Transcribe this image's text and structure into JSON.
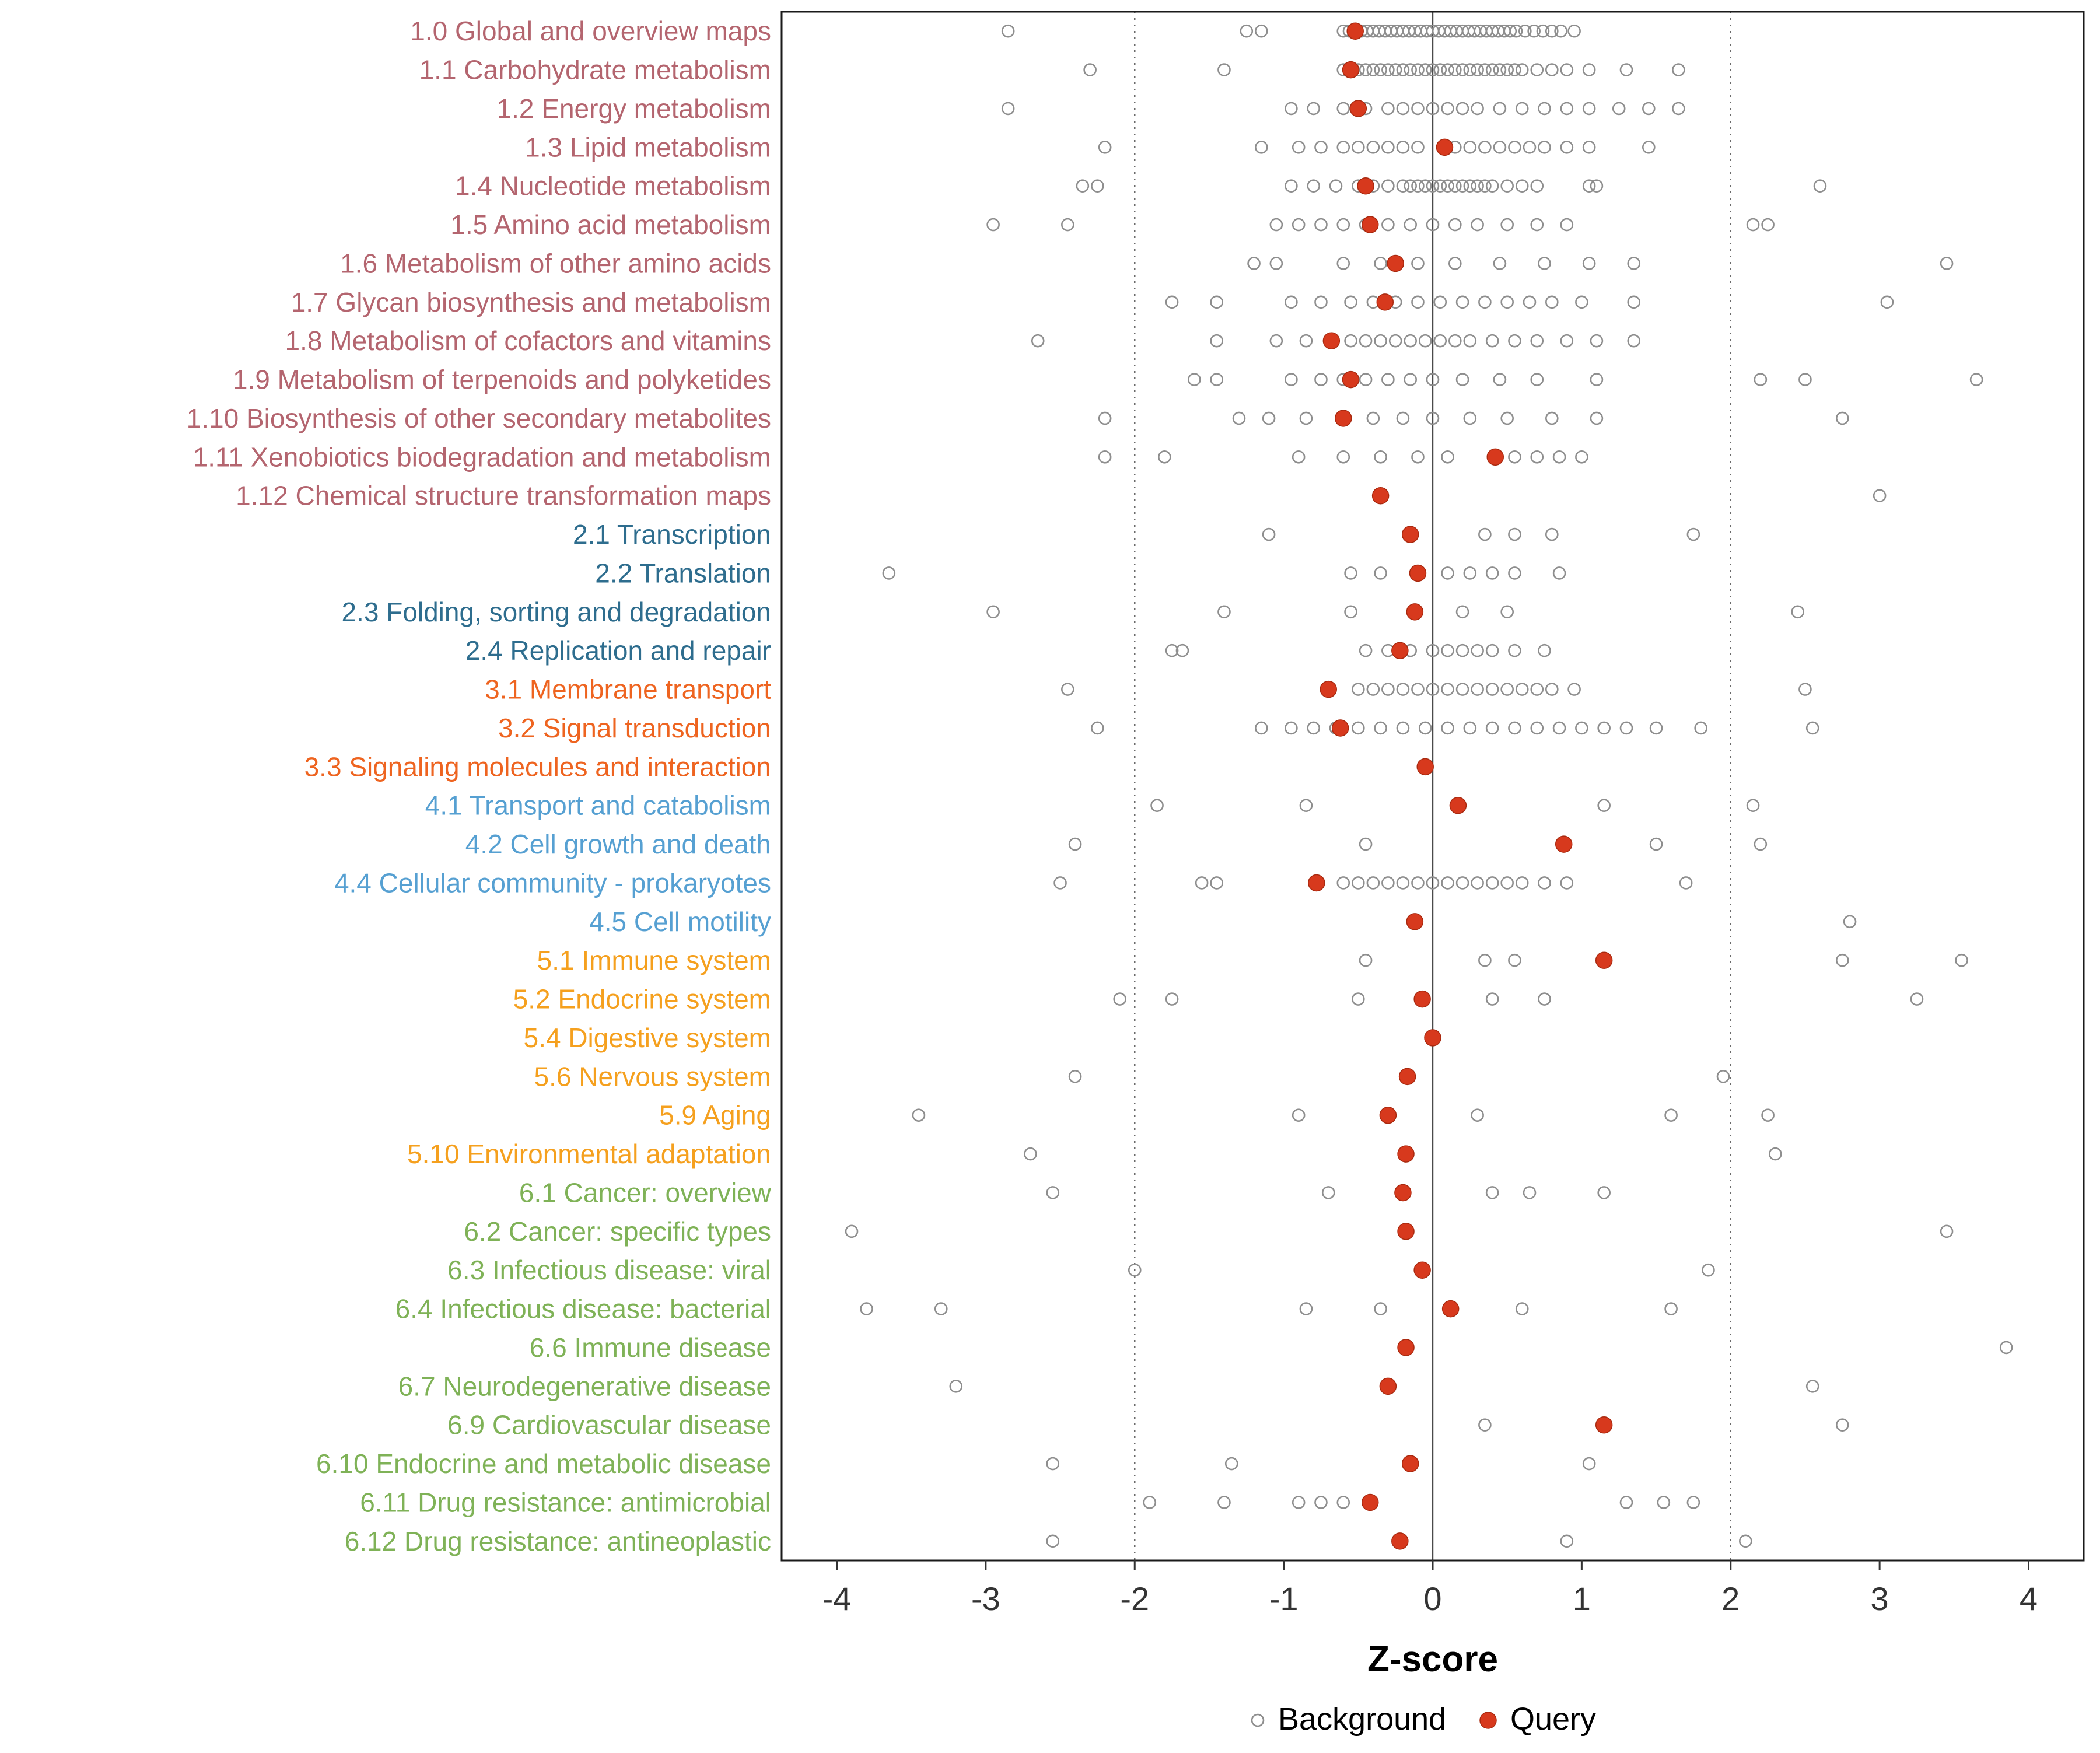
{
  "chart_data": {
    "type": "scatter",
    "title": "",
    "xlabel": "Z-score",
    "ylabel": "",
    "x_ticks": [
      -4,
      -3,
      -2,
      -1,
      0,
      1,
      2,
      3,
      4
    ],
    "xlim": [
      -4.37,
      4.37
    ],
    "grid": false,
    "reference_lines": {
      "solid": [
        0
      ],
      "dotted": [
        -2,
        2
      ]
    },
    "legend": {
      "position": "bottom",
      "items": [
        {
          "label": "Background",
          "marker": "open-circle"
        },
        {
          "label": "Query",
          "marker": "filled-circle"
        }
      ]
    },
    "colors": {
      "query": "#d7391d",
      "query_stroke": "#a8290f",
      "background_stroke": "#8e8e8e",
      "panel_border": "#1a1a1a",
      "zero_line": "#4a4a4a",
      "dotted_line": "#6a6a6a",
      "tick_text": "#333333",
      "axis_label": "#000000",
      "groups": {
        "1": "#b4656f",
        "2": "#2e6d8e",
        "3": "#ee6420",
        "4": "#56a0d2",
        "5": "#f5a01e",
        "6": "#7fb257"
      }
    },
    "rows": [
      {
        "label": "1.0 Global and overview maps",
        "group": "1",
        "query": -0.52,
        "background": [
          -2.85,
          -1.25,
          -1.15,
          -0.6,
          -0.56,
          -0.52,
          -0.48,
          -0.44,
          -0.4,
          -0.36,
          -0.32,
          -0.28,
          -0.24,
          -0.2,
          -0.16,
          -0.12,
          -0.08,
          -0.04,
          0,
          0.04,
          0.08,
          0.12,
          0.16,
          0.2,
          0.24,
          0.28,
          0.32,
          0.36,
          0.4,
          0.44,
          0.48,
          0.52,
          0.56,
          0.62,
          0.68,
          0.74,
          0.8,
          0.86,
          0.95
        ]
      },
      {
        "label": "1.1 Carbohydrate metabolism",
        "group": "1",
        "query": -0.55,
        "background": [
          -2.3,
          -1.4,
          -0.6,
          -0.55,
          -0.5,
          -0.45,
          -0.4,
          -0.35,
          -0.3,
          -0.25,
          -0.2,
          -0.15,
          -0.1,
          -0.05,
          0,
          0.05,
          0.1,
          0.15,
          0.2,
          0.25,
          0.3,
          0.35,
          0.4,
          0.45,
          0.5,
          0.55,
          0.6,
          0.7,
          0.8,
          0.9,
          1.05,
          1.3,
          1.65
        ]
      },
      {
        "label": "1.2 Energy metabolism",
        "group": "1",
        "query": -0.5,
        "background": [
          -2.85,
          -0.95,
          -0.8,
          -0.6,
          -0.45,
          -0.3,
          -0.2,
          -0.1,
          0,
          0.1,
          0.2,
          0.3,
          0.45,
          0.6,
          0.75,
          0.9,
          1.05,
          1.25,
          1.45,
          1.65
        ]
      },
      {
        "label": "1.3 Lipid metabolism",
        "group": "1",
        "query": 0.08,
        "background": [
          -2.2,
          -1.15,
          -0.9,
          -0.75,
          -0.6,
          -0.5,
          -0.4,
          -0.3,
          -0.2,
          -0.1,
          0.15,
          0.25,
          0.35,
          0.45,
          0.55,
          0.65,
          0.75,
          0.9,
          1.05,
          1.45
        ]
      },
      {
        "label": "1.4 Nucleotide metabolism",
        "group": "1",
        "query": -0.45,
        "background": [
          -2.35,
          -2.25,
          -0.95,
          -0.8,
          -0.65,
          -0.5,
          -0.4,
          -0.3,
          -0.2,
          -0.15,
          -0.1,
          -0.05,
          0,
          0.05,
          0.1,
          0.15,
          0.2,
          0.25,
          0.3,
          0.35,
          0.4,
          0.5,
          0.6,
          0.7,
          1.05,
          1.1,
          2.6
        ]
      },
      {
        "label": "1.5 Amino acid metabolism",
        "group": "1",
        "query": -0.42,
        "background": [
          -2.95,
          -2.45,
          -1.05,
          -0.9,
          -0.75,
          -0.6,
          -0.45,
          -0.3,
          -0.15,
          0,
          0.15,
          0.3,
          0.5,
          0.7,
          0.9,
          2.15,
          2.25
        ]
      },
      {
        "label": "1.6 Metabolism of other amino acids",
        "group": "1",
        "query": -0.25,
        "background": [
          -1.2,
          -1.05,
          -0.6,
          -0.35,
          -0.1,
          0.15,
          0.45,
          0.75,
          1.05,
          1.35,
          3.45
        ]
      },
      {
        "label": "1.7 Glycan biosynthesis and metabolism",
        "group": "1",
        "query": -0.32,
        "background": [
          -1.75,
          -1.45,
          -0.95,
          -0.75,
          -0.55,
          -0.4,
          -0.25,
          -0.1,
          0.05,
          0.2,
          0.35,
          0.5,
          0.65,
          0.8,
          1.0,
          1.35,
          3.05
        ]
      },
      {
        "label": "1.8 Metabolism of cofactors and vitamins",
        "group": "1",
        "query": -0.68,
        "background": [
          -2.65,
          -1.45,
          -1.05,
          -0.85,
          -0.55,
          -0.45,
          -0.35,
          -0.25,
          -0.15,
          -0.05,
          0.05,
          0.15,
          0.25,
          0.4,
          0.55,
          0.7,
          0.9,
          1.1,
          1.35
        ]
      },
      {
        "label": "1.9 Metabolism of terpenoids and polyketides",
        "group": "1",
        "query": -0.55,
        "background": [
          -1.6,
          -1.45,
          -0.95,
          -0.75,
          -0.6,
          -0.45,
          -0.3,
          -0.15,
          0,
          0.2,
          0.45,
          0.7,
          1.1,
          2.2,
          2.5,
          3.65
        ]
      },
      {
        "label": "1.10 Biosynthesis of other secondary metabolites",
        "group": "1",
        "query": -0.6,
        "background": [
          -2.2,
          -1.3,
          -1.1,
          -0.85,
          -0.6,
          -0.4,
          -0.2,
          0,
          0.25,
          0.5,
          0.8,
          1.1,
          2.75
        ]
      },
      {
        "label": "1.11 Xenobiotics biodegradation and metabolism",
        "group": "1",
        "query": 0.42,
        "background": [
          -2.2,
          -1.8,
          -0.9,
          -0.6,
          -0.35,
          -0.1,
          0.1,
          0.55,
          0.7,
          0.85,
          1.0
        ]
      },
      {
        "label": "1.12 Chemical structure transformation maps",
        "group": "1",
        "query": -0.35,
        "background": [
          3.0
        ]
      },
      {
        "label": "2.1 Transcription",
        "group": "2",
        "query": -0.15,
        "background": [
          -1.1,
          0.35,
          0.55,
          0.8,
          1.75
        ]
      },
      {
        "label": "2.2 Translation",
        "group": "2",
        "query": -0.1,
        "background": [
          -3.65,
          -0.55,
          -0.35,
          0.1,
          0.25,
          0.4,
          0.55,
          0.85
        ]
      },
      {
        "label": "2.3 Folding, sorting and degradation",
        "group": "2",
        "query": -0.12,
        "background": [
          -2.95,
          -1.4,
          -0.55,
          0.2,
          0.5,
          2.45
        ]
      },
      {
        "label": "2.4 Replication and repair",
        "group": "2",
        "query": -0.22,
        "background": [
          -1.75,
          -1.68,
          -0.45,
          -0.3,
          -0.15,
          0,
          0.1,
          0.2,
          0.3,
          0.4,
          0.55,
          0.75
        ]
      },
      {
        "label": "3.1 Membrane transport",
        "group": "3",
        "query": -0.7,
        "background": [
          -2.45,
          -0.5,
          -0.4,
          -0.3,
          -0.2,
          -0.1,
          0,
          0.1,
          0.2,
          0.3,
          0.4,
          0.5,
          0.6,
          0.7,
          0.8,
          0.95,
          2.5
        ]
      },
      {
        "label": "3.2 Signal transduction",
        "group": "3",
        "query": -0.62,
        "background": [
          -2.25,
          -1.15,
          -0.95,
          -0.8,
          -0.65,
          -0.5,
          -0.35,
          -0.2,
          -0.05,
          0.1,
          0.25,
          0.4,
          0.55,
          0.7,
          0.85,
          1.0,
          1.15,
          1.3,
          1.5,
          1.8,
          2.55
        ]
      },
      {
        "label": "3.3 Signaling molecules and interaction",
        "group": "3",
        "query": -0.05,
        "background": []
      },
      {
        "label": "4.1 Transport and catabolism",
        "group": "4",
        "query": 0.17,
        "background": [
          -1.85,
          -0.85,
          1.15,
          2.15
        ]
      },
      {
        "label": "4.2 Cell growth and death",
        "group": "4",
        "query": 0.88,
        "background": [
          -2.4,
          -0.45,
          1.5,
          2.2
        ]
      },
      {
        "label": "4.4 Cellular community - prokaryotes",
        "group": "4",
        "query": -0.78,
        "background": [
          -2.5,
          -1.55,
          -1.45,
          -0.6,
          -0.5,
          -0.4,
          -0.3,
          -0.2,
          -0.1,
          0,
          0.1,
          0.2,
          0.3,
          0.4,
          0.5,
          0.6,
          0.75,
          0.9,
          1.7
        ]
      },
      {
        "label": "4.5 Cell motility",
        "group": "4",
        "query": -0.12,
        "background": [
          2.8
        ]
      },
      {
        "label": "5.1 Immune system",
        "group": "5",
        "query": 1.15,
        "background": [
          -0.45,
          0.35,
          0.55,
          2.75,
          3.55
        ]
      },
      {
        "label": "5.2 Endocrine system",
        "group": "5",
        "query": -0.07,
        "background": [
          -2.1,
          -1.75,
          -0.5,
          0.4,
          0.75,
          3.25
        ]
      },
      {
        "label": "5.4 Digestive system",
        "group": "5",
        "query": 0.0,
        "background": []
      },
      {
        "label": "5.6 Nervous system",
        "group": "5",
        "query": -0.17,
        "background": [
          -2.4,
          1.95
        ]
      },
      {
        "label": "5.9 Aging",
        "group": "5",
        "query": -0.3,
        "background": [
          -3.45,
          -0.9,
          0.3,
          1.6,
          2.25
        ]
      },
      {
        "label": "5.10 Environmental adaptation",
        "group": "5",
        "query": -0.18,
        "background": [
          -2.7,
          2.3
        ]
      },
      {
        "label": "6.1 Cancer: overview",
        "group": "6",
        "query": -0.2,
        "background": [
          -2.55,
          -0.7,
          0.4,
          0.65,
          1.15
        ]
      },
      {
        "label": "6.2 Cancer: specific types",
        "group": "6",
        "query": -0.18,
        "background": [
          -3.9,
          3.45
        ]
      },
      {
        "label": "6.3 Infectious disease: viral",
        "group": "6",
        "query": -0.07,
        "background": [
          -2.0,
          1.85
        ]
      },
      {
        "label": "6.4 Infectious disease: bacterial",
        "group": "6",
        "query": 0.12,
        "background": [
          -3.8,
          -3.3,
          -0.85,
          -0.35,
          0.6,
          1.6
        ]
      },
      {
        "label": "6.6 Immune disease",
        "group": "6",
        "query": -0.18,
        "background": [
          3.85
        ]
      },
      {
        "label": "6.7 Neurodegenerative disease",
        "group": "6",
        "query": -0.3,
        "background": [
          -3.2,
          2.55
        ]
      },
      {
        "label": "6.9 Cardiovascular disease",
        "group": "6",
        "query": 1.15,
        "background": [
          0.35,
          2.75
        ]
      },
      {
        "label": "6.10 Endocrine and metabolic disease",
        "group": "6",
        "query": -0.15,
        "background": [
          -2.55,
          -1.35,
          1.05
        ]
      },
      {
        "label": "6.11 Drug resistance: antimicrobial",
        "group": "6",
        "query": -0.42,
        "background": [
          -1.9,
          -1.4,
          -0.9,
          -0.75,
          -0.6,
          1.3,
          1.55,
          1.75
        ]
      },
      {
        "label": "6.12 Drug resistance: antineoplastic",
        "group": "6",
        "query": -0.22,
        "background": [
          -2.55,
          0.9,
          2.1
        ]
      }
    ]
  }
}
